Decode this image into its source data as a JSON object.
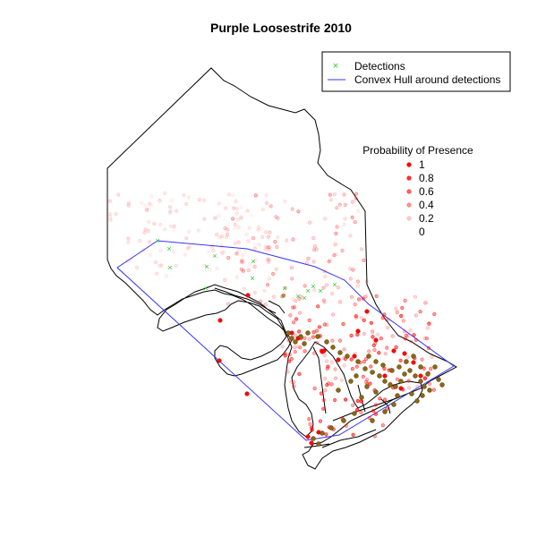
{
  "title": "Purple Loosestrife 2010",
  "legend_detection": {
    "detections_label": "Detections",
    "hull_label": "Convex Hull around detections",
    "detection_color": "#22cc22",
    "hull_color": "#3333ff"
  },
  "legend_probability": {
    "title": "Probability of Presence",
    "levels": [
      {
        "label": "1",
        "value": 1.0
      },
      {
        "label": "0.8",
        "value": 0.8
      },
      {
        "label": "0.6",
        "value": 0.6
      },
      {
        "label": "0.4",
        "value": 0.4
      },
      {
        "label": "0.2",
        "value": 0.2
      },
      {
        "label": "0",
        "value": 0.0
      }
    ]
  },
  "colors": {
    "boundary": "#000000",
    "presence_high": "#ff0000",
    "observed_point": "#8b6914"
  }
}
